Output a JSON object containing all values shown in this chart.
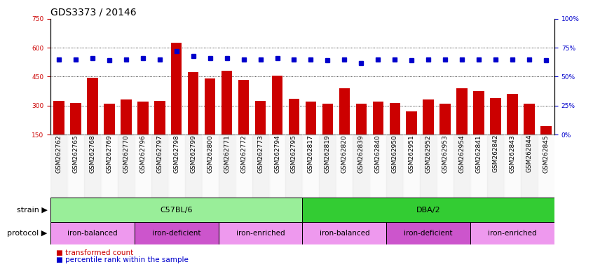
{
  "title": "GDS3373 / 20146",
  "samples": [
    "GSM262762",
    "GSM262765",
    "GSM262768",
    "GSM262769",
    "GSM262770",
    "GSM262796",
    "GSM262797",
    "GSM262798",
    "GSM262799",
    "GSM262800",
    "GSM262771",
    "GSM262772",
    "GSM262773",
    "GSM262794",
    "GSM262795",
    "GSM262817",
    "GSM262819",
    "GSM262820",
    "GSM262839",
    "GSM262840",
    "GSM262950",
    "GSM262951",
    "GSM262952",
    "GSM262953",
    "GSM262954",
    "GSM262841",
    "GSM262842",
    "GSM262843",
    "GSM262844",
    "GSM262845"
  ],
  "bar_values": [
    325,
    315,
    445,
    310,
    330,
    320,
    325,
    625,
    475,
    440,
    480,
    435,
    325,
    455,
    335,
    320,
    310,
    390,
    310,
    320,
    315,
    270,
    330,
    310,
    390,
    375,
    340,
    360,
    310,
    195
  ],
  "percentile_values": [
    65,
    65,
    66,
    64,
    65,
    66,
    65,
    72,
    68,
    66,
    66,
    65,
    65,
    66,
    65,
    65,
    64,
    65,
    62,
    65,
    65,
    64,
    65,
    65,
    65,
    65,
    65,
    65,
    65,
    64
  ],
  "ylim_left": [
    150,
    750
  ],
  "ylim_right": [
    0,
    100
  ],
  "yticks_left": [
    150,
    300,
    450,
    600,
    750
  ],
  "yticks_right": [
    0,
    25,
    50,
    75,
    100
  ],
  "bar_color": "#cc0000",
  "dot_color": "#0000cc",
  "strain_regions": [
    {
      "label": "C57BL/6",
      "start": 0,
      "end": 15,
      "color": "#99ee99"
    },
    {
      "label": "DBA/2",
      "start": 15,
      "end": 30,
      "color": "#33cc33"
    }
  ],
  "protocol_regions": [
    {
      "label": "iron-balanced",
      "start": 0,
      "end": 5,
      "color": "#ee99ee"
    },
    {
      "label": "iron-deficient",
      "start": 5,
      "end": 10,
      "color": "#cc55cc"
    },
    {
      "label": "iron-enriched",
      "start": 10,
      "end": 15,
      "color": "#ee99ee"
    },
    {
      "label": "iron-balanced",
      "start": 15,
      "end": 20,
      "color": "#ee99ee"
    },
    {
      "label": "iron-deficient",
      "start": 20,
      "end": 25,
      "color": "#cc55cc"
    },
    {
      "label": "iron-enriched",
      "start": 25,
      "end": 30,
      "color": "#ee99ee"
    }
  ],
  "legend_items": [
    {
      "label": "transformed count",
      "color": "#cc0000"
    },
    {
      "label": "percentile rank within the sample",
      "color": "#0000cc"
    }
  ],
  "title_fontsize": 10,
  "tick_fontsize": 6.5,
  "bar_width": 0.65,
  "strain_label": "strain",
  "protocol_label": "protocol"
}
